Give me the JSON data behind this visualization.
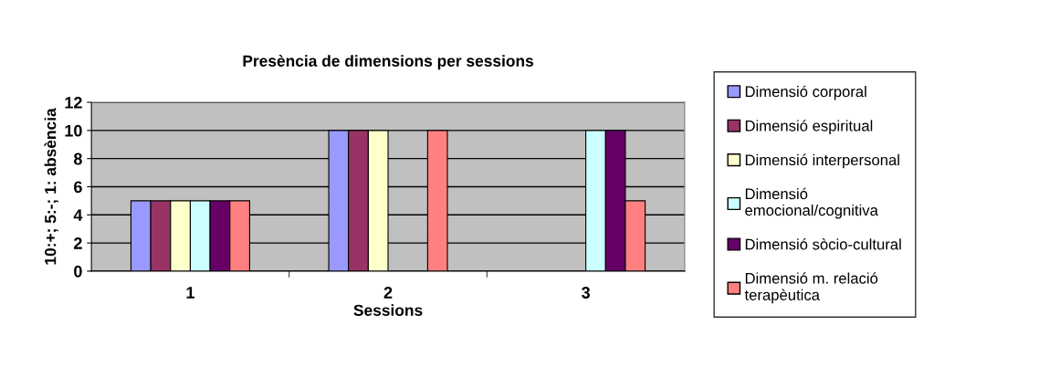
{
  "chart_data": {
    "type": "bar",
    "title": "Presència de dimensions per sessions",
    "xlabel": "Sessions",
    "ylabel": "10:+; 5:-; 1: absència",
    "categories": [
      "1",
      "2",
      "3"
    ],
    "series": [
      {
        "name": "Dimensió corporal",
        "color": "#9999ff",
        "values": [
          5,
          10,
          null
        ]
      },
      {
        "name": "Dimensió espiritual",
        "color": "#993366",
        "values": [
          5,
          10,
          null
        ]
      },
      {
        "name": "Dimensió interpersonal",
        "color": "#ffffcc",
        "values": [
          5,
          10,
          null
        ]
      },
      {
        "name": "Dimensió emocional/cognitiva",
        "color": "#ccffff",
        "values": [
          5,
          null,
          10
        ]
      },
      {
        "name": "Dimensió sòcio-cultural",
        "color": "#660066",
        "values": [
          5,
          null,
          10
        ]
      },
      {
        "name": "Dimensió m. relació terapèutica",
        "color": "#ff8080",
        "values": [
          5,
          10,
          5
        ]
      }
    ],
    "ylim": [
      0,
      12
    ],
    "yticks": [
      0,
      2,
      4,
      6,
      8,
      10,
      12
    ],
    "grid": "y",
    "legend": "right"
  }
}
